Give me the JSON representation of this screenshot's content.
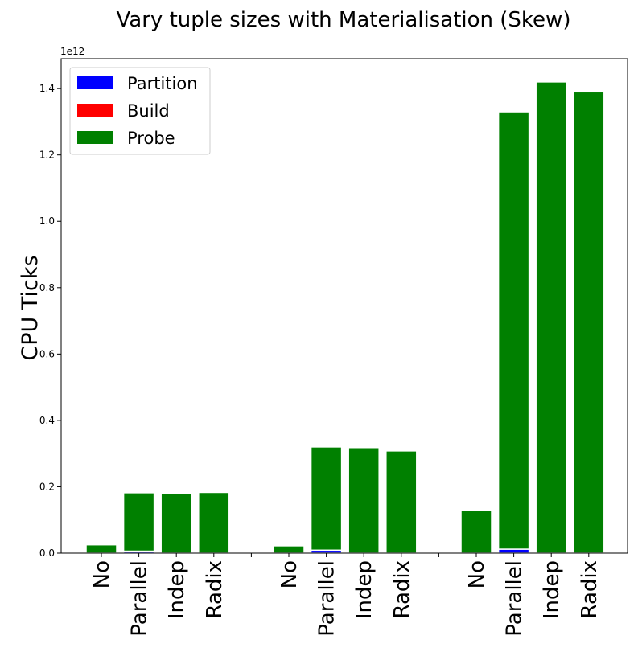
{
  "chart_data": {
    "type": "bar",
    "stacked": true,
    "title": "Vary tuple sizes with Materialisation (Skew)",
    "ylabel": "CPU Ticks",
    "xlabel": "",
    "y_scale_label": "1e12",
    "y_scale": 1000000000000.0,
    "ylim": [
      0,
      1.49
    ],
    "yticks": [
      "0.0",
      "0.2",
      "0.4",
      "0.6",
      "0.8",
      "1.0",
      "1.2",
      "1.4"
    ],
    "categories": [
      "No",
      "Parallel",
      "Indep",
      "Radix",
      "No",
      "Parallel",
      "Indep",
      "Radix",
      "No",
      "Parallel",
      "Indep",
      "Radix"
    ],
    "group_size": 4,
    "series": [
      {
        "name": "Partition",
        "color": "#0000ff",
        "values": [
          0.0,
          0.006,
          0.0,
          0.0,
          0.0,
          0.009,
          0.0,
          0.0,
          0.0,
          0.012,
          0.0,
          0.0
        ]
      },
      {
        "name": "Build",
        "color": "#ff0000",
        "values": [
          0.0,
          0.0,
          0.0,
          0.0,
          0.0,
          0.0,
          0.0,
          0.0,
          0.0,
          0.0,
          0.0,
          0.0
        ]
      },
      {
        "name": "Probe",
        "color": "#008000",
        "values": [
          0.025,
          0.176,
          0.18,
          0.183,
          0.022,
          0.311,
          0.318,
          0.308,
          0.13,
          1.318,
          1.42,
          1.39
        ]
      }
    ],
    "legend_position": "top-left",
    "grid": false
  }
}
